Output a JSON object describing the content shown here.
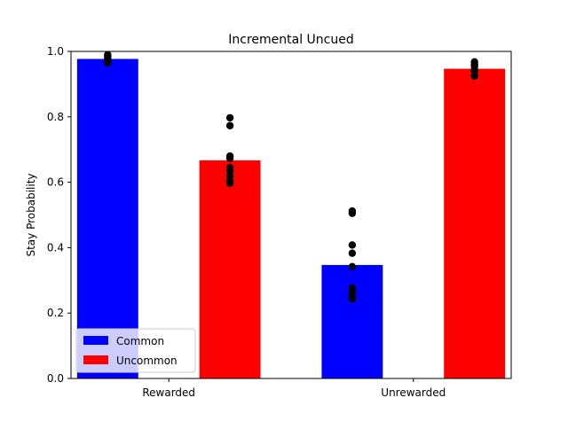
{
  "chart_data": {
    "type": "bar",
    "title": "Incremental Uncued",
    "xlabel": "",
    "ylabel": "Stay Probability",
    "ylim": [
      0,
      1.0
    ],
    "yticks": [
      0.0,
      0.2,
      0.4,
      0.6,
      0.8,
      1.0
    ],
    "ytick_labels": [
      "0.0",
      "0.2",
      "0.4",
      "0.6",
      "0.8",
      "1.0"
    ],
    "categories": [
      "Rewarded",
      "Unrewarded"
    ],
    "series": [
      {
        "name": "Common",
        "color": "#0000ff",
        "values": [
          0.977,
          0.347
        ]
      },
      {
        "name": "Uncommon",
        "color": "#ff0000",
        "values": [
          0.667,
          0.947
        ]
      }
    ],
    "points": [
      {
        "category": "Rewarded",
        "series": "Common",
        "values": [
          0.965,
          0.97,
          0.975,
          0.98,
          0.985,
          0.99
        ]
      },
      {
        "category": "Rewarded",
        "series": "Uncommon",
        "values": [
          0.797,
          0.773,
          0.68,
          0.673,
          0.645,
          0.635,
          0.62,
          0.605,
          0.597
        ]
      },
      {
        "category": "Unrewarded",
        "series": "Common",
        "values": [
          0.512,
          0.505,
          0.408,
          0.383,
          0.342,
          0.277,
          0.265,
          0.252,
          0.243
        ]
      },
      {
        "category": "Unrewarded",
        "series": "Uncommon",
        "values": [
          0.968,
          0.96,
          0.955,
          0.945,
          0.94,
          0.928,
          0.925
        ]
      }
    ],
    "point_color": "#000000",
    "legend": {
      "position": "lower-left",
      "entries": [
        "Common",
        "Uncommon"
      ]
    },
    "grid": false
  }
}
